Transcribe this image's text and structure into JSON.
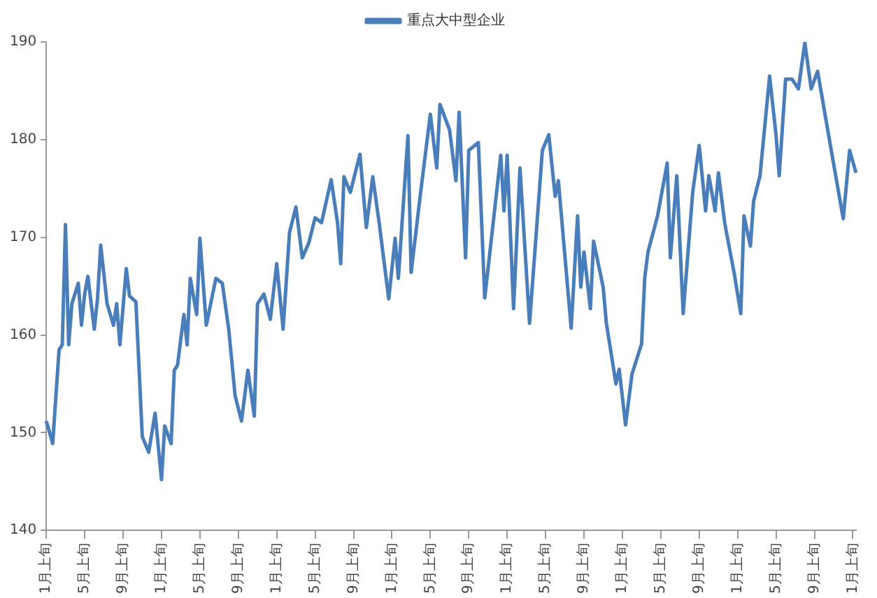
{
  "chart_data": {
    "type": "line",
    "legend": "top",
    "grid": false,
    "marker": "none",
    "line_style": "solid",
    "ylim": [
      140,
      190
    ],
    "yticks": [
      140,
      150,
      160,
      170,
      180,
      190
    ],
    "categories": [
      "1月上旬",
      null,
      null,
      null,
      null,
      null,
      null,
      null,
      null,
      null,
      null,
      null,
      "5月上旬",
      null,
      null,
      null,
      null,
      null,
      null,
      null,
      null,
      null,
      null,
      null,
      "9月上旬",
      null,
      null,
      null,
      null,
      null,
      null,
      null,
      null,
      null,
      null,
      null,
      "1月上旬",
      null,
      null,
      null,
      null,
      null,
      null,
      null,
      null,
      null,
      null,
      null,
      "5月上旬",
      null,
      null,
      null,
      null,
      null,
      null,
      null,
      null,
      null,
      null,
      null,
      "9月上旬",
      null,
      null,
      null,
      null,
      null,
      null,
      null,
      null,
      null,
      null,
      null,
      "1月上旬",
      null,
      null,
      null,
      null,
      null,
      null,
      null,
      null,
      null,
      null,
      null,
      "5月上旬",
      null,
      null,
      null,
      null,
      null,
      null,
      null,
      null,
      null,
      null,
      null,
      "9月上旬",
      null,
      null,
      null,
      null,
      null,
      null,
      null,
      null,
      null,
      null,
      null,
      "1月上旬",
      null,
      null,
      null,
      null,
      null,
      null,
      null,
      null,
      null,
      null,
      null,
      "5月上旬",
      null,
      null,
      null,
      null,
      null,
      null,
      null,
      null,
      null,
      null,
      null,
      "9月上旬",
      null,
      null,
      null,
      null,
      null,
      null,
      null,
      null,
      null,
      null,
      null,
      "1月上旬",
      null,
      null,
      null,
      null,
      null,
      null,
      null,
      null,
      null,
      null,
      null,
      "5月上旬",
      null,
      null,
      null,
      null,
      null,
      null,
      null,
      null,
      null,
      null,
      null,
      "9月上旬",
      null,
      null,
      null,
      null,
      null,
      null,
      null,
      null,
      null,
      null,
      null,
      "1月上旬",
      null,
      null,
      null,
      null,
      null,
      null,
      null,
      null,
      null,
      null,
      null,
      "5月上旬",
      null,
      null,
      null,
      null,
      null,
      null,
      null,
      null,
      null,
      null,
      null,
      "9月上旬",
      null,
      null,
      null,
      null,
      null,
      null,
      null,
      null,
      null,
      null,
      null,
      "1月上旬",
      null,
      null,
      null,
      null,
      null,
      null,
      null,
      null,
      null,
      null,
      null,
      "5月上旬",
      null,
      null,
      null,
      null,
      null,
      null,
      null,
      null,
      null,
      null,
      null,
      "9月上旬",
      null,
      null,
      null,
      null,
      null,
      null,
      null,
      null,
      null,
      null,
      null,
      "1月上旬",
      null
    ],
    "series": [
      {
        "name": "重点大中型企业",
        "color": "#4a7ebb",
        "values": [
          151.2,
          null,
          148.9,
          null,
          158.5,
          159,
          171.3,
          159,
          163.2,
          null,
          165.3,
          161,
          164.2,
          166,
          null,
          160.6,
          163.7,
          169.2,
          null,
          163.2,
          null,
          161,
          163.2,
          159,
          null,
          166.8,
          164,
          null,
          163.4,
          null,
          149.6,
          null,
          148,
          null,
          152,
          null,
          145.2,
          150.7,
          null,
          148.9,
          156.4,
          156.9,
          null,
          162.1,
          159,
          165.8,
          null,
          162.1,
          169.9,
          null,
          161,
          null,
          null,
          165.8,
          null,
          165.3,
          null,
          160.6,
          null,
          153.8,
          null,
          151.2,
          null,
          156.4,
          null,
          151.7,
          163.2,
          null,
          164.2,
          null,
          161.6,
          null,
          167.3,
          null,
          160.6,
          null,
          170.5,
          null,
          173.1,
          null,
          167.9,
          null,
          169.4,
          null,
          172,
          null,
          171.5,
          null,
          null,
          175.9,
          null,
          171.5,
          167.3,
          176.2,
          null,
          174.6,
          null,
          null,
          178.5,
          null,
          171,
          null,
          176.2,
          null,
          171.5,
          null,
          null,
          163.7,
          null,
          169.9,
          165.8,
          null,
          null,
          180.4,
          166.4,
          null,
          null,
          174.7,
          null,
          null,
          182.6,
          null,
          177.1,
          183.6,
          null,
          null,
          181,
          null,
          175.8,
          182.8,
          null,
          167.9,
          178.9,
          null,
          null,
          179.7,
          null,
          163.8,
          null,
          null,
          null,
          null,
          178.4,
          172.7,
          178.4,
          null,
          162.7,
          null,
          177.1,
          null,
          null,
          161.2,
          null,
          null,
          null,
          178.9,
          null,
          180.5,
          null,
          174.2,
          175.8,
          null,
          null,
          null,
          160.7,
          null,
          172.2,
          164.9,
          168.5,
          null,
          162.7,
          169.6,
          null,
          null,
          164.9,
          161.2,
          null,
          null,
          155,
          156.5,
          null,
          150.8,
          null,
          156,
          null,
          null,
          159.1,
          165.9,
          168.5,
          null,
          null,
          172.2,
          null,
          null,
          177.6,
          167.9,
          null,
          176.3,
          null,
          162.2,
          null,
          null,
          174.7,
          null,
          179.4,
          null,
          172.7,
          176.3,
          null,
          172.7,
          176.6,
          null,
          171.4,
          null,
          null,
          166.2,
          null,
          162.2,
          172.2,
          null,
          169.1,
          173.7,
          null,
          176.3,
          null,
          null,
          186.5,
          null,
          180.5,
          176.3,
          null,
          186.2,
          null,
          186.2,
          null,
          185.2,
          null,
          189.9,
          null,
          185.2,
          null,
          187,
          null,
          null,
          null,
          179.4,
          null,
          null,
          null,
          171.9,
          null,
          178.9,
          null,
          176.6
        ]
      }
    ]
  }
}
